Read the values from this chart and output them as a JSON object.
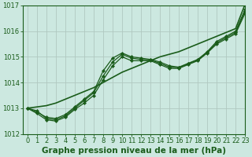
{
  "title": "Graphe pression niveau de la mer (hPa)",
  "background_color": "#cce8e0",
  "grid_color": "#b0c8c0",
  "line_color": "#1a5c1a",
  "xlim": [
    -0.5,
    23
  ],
  "ylim": [
    1012,
    1017
  ],
  "yticks": [
    1012,
    1013,
    1014,
    1015,
    1016,
    1017
  ],
  "xticks": [
    0,
    1,
    2,
    3,
    4,
    5,
    6,
    7,
    8,
    9,
    10,
    11,
    12,
    13,
    14,
    15,
    16,
    17,
    18,
    19,
    20,
    21,
    22,
    23
  ],
  "series": [
    {
      "y": [
        1013.0,
        1013.05,
        1013.1,
        1013.2,
        1013.35,
        1013.5,
        1013.65,
        1013.8,
        1014.0,
        1014.2,
        1014.4,
        1014.55,
        1014.7,
        1014.85,
        1015.0,
        1015.1,
        1015.2,
        1015.35,
        1015.5,
        1015.65,
        1015.8,
        1015.95,
        1016.1,
        1017.05
      ],
      "marker": null,
      "linewidth": 1.2
    },
    {
      "y": [
        1013.0,
        1012.85,
        1012.65,
        1012.6,
        1012.75,
        1013.05,
        1013.35,
        1013.65,
        1014.45,
        1014.95,
        1015.15,
        1015.0,
        1014.95,
        1014.9,
        1014.8,
        1014.65,
        1014.6,
        1014.75,
        1014.9,
        1015.2,
        1015.6,
        1015.8,
        1016.0,
        1016.85
      ],
      "marker": "D",
      "linewidth": 0.9
    },
    {
      "y": [
        1013.0,
        1012.8,
        1012.55,
        1012.5,
        1012.65,
        1012.95,
        1013.2,
        1013.5,
        1014.1,
        1014.65,
        1015.0,
        1014.85,
        1014.85,
        1014.85,
        1014.7,
        1014.55,
        1014.55,
        1014.7,
        1014.85,
        1015.15,
        1015.5,
        1015.7,
        1015.9,
        1016.7
      ],
      "marker": "D",
      "linewidth": 0.9
    },
    {
      "y": [
        1013.0,
        1012.9,
        1012.6,
        1012.55,
        1012.7,
        1013.0,
        1013.3,
        1013.6,
        1014.25,
        1014.8,
        1015.1,
        1014.95,
        1014.9,
        1014.88,
        1014.75,
        1014.6,
        1014.58,
        1014.73,
        1014.88,
        1015.18,
        1015.55,
        1015.75,
        1015.95,
        1016.78
      ],
      "marker": "D",
      "linewidth": 0.9
    }
  ],
  "title_color": "#1a5c1a",
  "title_fontsize": 7.5,
  "tick_fontsize": 6.0,
  "marker_size": 2.2
}
